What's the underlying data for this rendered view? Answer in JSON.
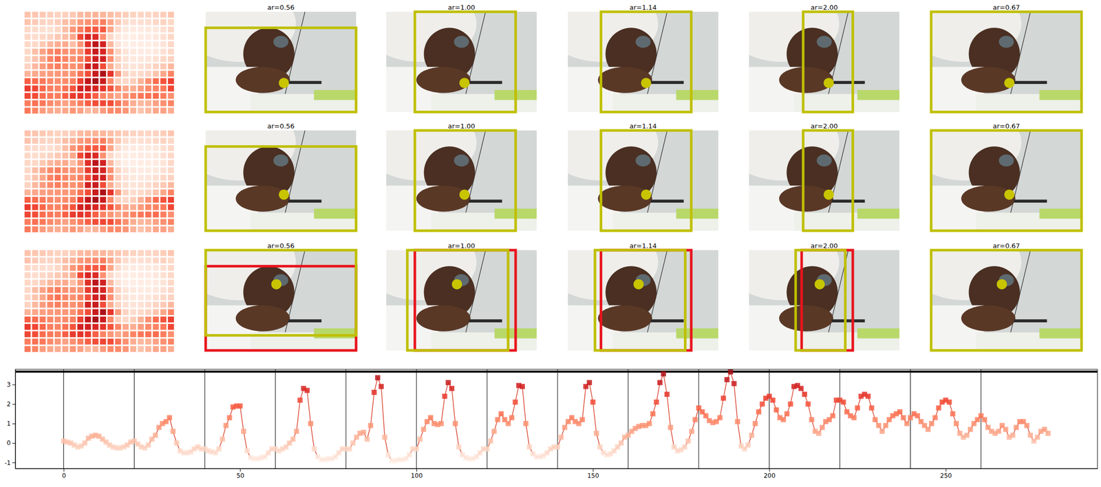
{
  "chart_data": [
    {
      "type": "heatmap",
      "cells": [
        [
          0.1,
          0.05,
          0.0,
          -0.1,
          -0.2,
          -0.15,
          0.0,
          0.25,
          0.35,
          0.4,
          0.35,
          0.2,
          0.05,
          -0.1,
          -0.2,
          -0.25,
          -0.25,
          -0.2,
          -0.1,
          0.05
        ],
        [
          0.1,
          -0.05,
          -0.2,
          -0.25,
          -0.1,
          0.2,
          0.4,
          0.8,
          1.0,
          1.1,
          1.3,
          0.6,
          0.0,
          -0.4,
          -0.5,
          -0.5,
          -0.45,
          -0.3,
          -0.2,
          -0.3
        ],
        [
          -0.3,
          -0.4,
          -0.45,
          -0.5,
          -0.3,
          0.2,
          0.9,
          1.3,
          1.85,
          1.9,
          1.9,
          0.6,
          -0.4,
          -0.75,
          -0.8,
          -0.8,
          -0.75,
          -0.7,
          -0.5,
          -0.3
        ],
        [
          -0.3,
          -0.4,
          -0.3,
          -0.2,
          0.0,
          0.2,
          0.6,
          2.2,
          2.8,
          2.7,
          1.0,
          -0.3,
          -0.7,
          -0.85,
          -0.85,
          -0.8,
          -0.8,
          -0.7,
          -0.5,
          -0.3
        ],
        [
          -0.3,
          -0.3,
          0.0,
          0.3,
          0.5,
          0.55,
          0.2,
          0.9,
          2.6,
          3.35,
          2.9,
          0.3,
          -0.6,
          -0.9,
          -0.9,
          -0.85,
          -0.85,
          -0.8,
          -0.6,
          -0.3
        ],
        [
          -0.3,
          0.2,
          0.7,
          1.1,
          1.3,
          1.0,
          0.95,
          1.0,
          2.4,
          3.1,
          2.8,
          1.0,
          -0.2,
          -0.6,
          -0.75,
          -0.8,
          -0.8,
          -0.7,
          -0.5,
          -0.3
        ],
        [
          -0.3,
          0.1,
          0.6,
          1.2,
          1.5,
          1.2,
          1.0,
          1.3,
          2.1,
          2.95,
          2.9,
          1.0,
          -0.2,
          -0.55,
          -0.7,
          -0.7,
          -0.65,
          -0.5,
          -0.3,
          -0.2
        ],
        [
          -0.2,
          0.3,
          0.8,
          1.1,
          1.3,
          1.1,
          1.0,
          1.2,
          2.9,
          3.1,
          2.1,
          0.5,
          -0.2,
          -0.5,
          -0.6,
          -0.55,
          -0.4,
          -0.2,
          0.0,
          0.3
        ],
        [
          0.4,
          0.6,
          0.75,
          0.85,
          0.9,
          0.9,
          1.0,
          1.5,
          2.1,
          3.1,
          3.55,
          2.5,
          0.8,
          -0.2,
          -0.4,
          -0.35,
          -0.2,
          0.1,
          0.6,
          1.2
        ],
        [
          1.8,
          1.6,
          1.4,
          1.15,
          1.05,
          1.1,
          1.3,
          2.3,
          3.25,
          3.65,
          3.05,
          1.1,
          -0.15,
          -0.3,
          -0.1,
          0.4,
          1.0,
          1.6,
          2.0,
          2.3
        ],
        [
          2.4,
          2.2,
          1.7,
          1.3,
          1.2,
          1.5,
          2.0,
          2.9,
          2.95,
          2.8,
          2.5,
          2.0,
          1.2,
          0.6,
          0.5,
          0.8,
          1.1,
          1.2,
          1.4,
          2.2
        ],
        [
          2.2,
          2.1,
          1.6,
          1.4,
          1.3,
          1.8,
          2.4,
          2.5,
          2.4,
          1.8,
          1.2,
          0.9,
          0.6,
          0.9,
          1.2,
          1.4,
          1.5,
          1.6,
          1.3,
          1.0
        ],
        [
          1.3,
          1.5,
          1.4,
          1.1,
          0.9,
          0.7,
          1.0,
          1.3,
          1.8,
          2.1,
          2.2,
          2.1,
          1.5,
          1.0,
          0.5,
          0.3,
          0.4,
          0.7,
          1.0,
          1.2
        ],
        [
          1.4,
          1.2,
          0.8,
          0.6,
          0.5,
          0.6,
          0.9,
          0.7,
          0.3,
          0.4,
          0.8,
          1.1,
          1.1,
          0.9,
          0.4,
          0.1,
          0.3,
          0.6,
          0.7,
          0.5
        ]
      ]
    },
    {
      "type": "image_grid",
      "rows": [
        [
          {
            "title": "ar=0.56",
            "box": [
              0.0,
              0.16,
              1.0,
              1.0
            ],
            "point": [
              0.52,
              0.71
            ]
          },
          {
            "title": "ar=1.00",
            "box": [
              0.19,
              0.0,
              0.86,
              1.0
            ],
            "point": [
              0.52,
              0.71
            ]
          },
          {
            "title": "ar=1.14",
            "box": [
              0.22,
              0.0,
              0.82,
              1.0
            ],
            "point": [
              0.52,
              0.71
            ]
          },
          {
            "title": "ar=2.00",
            "box": [
              0.36,
              0.0,
              0.69,
              1.0
            ],
            "point": [
              0.53,
              0.71
            ]
          },
          {
            "title": "ar=0.67",
            "box": [
              0.0,
              0.0,
              1.0,
              1.0
            ],
            "point": [
              0.52,
              0.71
            ]
          }
        ],
        [
          {
            "title": "ar=0.56",
            "box": [
              0.0,
              0.16,
              1.0,
              1.0
            ],
            "point": [
              0.52,
              0.64
            ]
          },
          {
            "title": "ar=1.00",
            "box": [
              0.19,
              0.0,
              0.86,
              1.0
            ],
            "point": [
              0.52,
              0.64
            ]
          },
          {
            "title": "ar=1.14",
            "box": [
              0.22,
              0.0,
              0.82,
              1.0
            ],
            "point": [
              0.52,
              0.64
            ]
          },
          {
            "title": "ar=2.00",
            "box": [
              0.36,
              0.0,
              0.69,
              1.0
            ],
            "point": [
              0.53,
              0.64
            ]
          },
          {
            "title": "ar=0.67",
            "box": [
              0.0,
              0.0,
              1.0,
              1.0
            ],
            "point": [
              0.52,
              0.64
            ]
          }
        ],
        [
          {
            "title": "ar=0.56",
            "box": [
              0.0,
              0.0,
              1.0,
              0.85
            ],
            "prev_box": [
              0.0,
              0.16,
              1.0,
              1.0
            ],
            "point": [
              0.47,
              0.34
            ]
          },
          {
            "title": "ar=1.00",
            "box": [
              0.14,
              0.0,
              0.81,
              1.0
            ],
            "prev_box": [
              0.19,
              0.0,
              0.86,
              1.0
            ],
            "point": [
              0.47,
              0.34
            ]
          },
          {
            "title": "ar=1.14",
            "box": [
              0.18,
              0.0,
              0.78,
              1.0
            ],
            "prev_box": [
              0.22,
              0.0,
              0.82,
              1.0
            ],
            "point": [
              0.47,
              0.34
            ]
          },
          {
            "title": "ar=2.00",
            "box": [
              0.31,
              0.0,
              0.64,
              1.0
            ],
            "prev_box": [
              0.35,
              0.0,
              0.69,
              1.0
            ],
            "point": [
              0.47,
              0.34
            ]
          },
          {
            "title": "ar=0.67",
            "box": [
              0.0,
              0.0,
              1.0,
              1.0
            ],
            "point": [
              0.47,
              0.34
            ]
          }
        ]
      ]
    },
    {
      "type": "line",
      "color": "#d9432f",
      "marker": "square",
      "xlim": [
        -13.7,
        293
      ],
      "ylim": [
        -1.31,
        3.78
      ],
      "xticks": [
        0,
        50,
        100,
        150,
        200,
        250
      ],
      "yticks": [
        -1,
        0,
        1,
        2,
        3
      ],
      "vlines": [
        0,
        20,
        40,
        60,
        80,
        100,
        120,
        140,
        160,
        180,
        200,
        220,
        240,
        260
      ],
      "hline": 3.66,
      "x": [
        0,
        1,
        2,
        3,
        4,
        5,
        6,
        7,
        8,
        9,
        10,
        11,
        12,
        13,
        14,
        15,
        16,
        17,
        18,
        19,
        20,
        21,
        22,
        23,
        24,
        25,
        26,
        27,
        28,
        29,
        30,
        31,
        32,
        33,
        34,
        35,
        36,
        37,
        38,
        39,
        40,
        41,
        42,
        43,
        44,
        45,
        46,
        47,
        48,
        49,
        50,
        51,
        52,
        53,
        54,
        55,
        56,
        57,
        58,
        59,
        60,
        61,
        62,
        63,
        64,
        65,
        66,
        67,
        68,
        69,
        70,
        71,
        72,
        73,
        74,
        75,
        76,
        77,
        78,
        79,
        80,
        81,
        82,
        83,
        84,
        85,
        86,
        87,
        88,
        89,
        90,
        91,
        92,
        93,
        94,
        95,
        96,
        97,
        98,
        99,
        100,
        101,
        102,
        103,
        104,
        105,
        106,
        107,
        108,
        109,
        110,
        111,
        112,
        113,
        114,
        115,
        116,
        117,
        118,
        119,
        120,
        121,
        122,
        123,
        124,
        125,
        126,
        127,
        128,
        129,
        130,
        131,
        132,
        133,
        134,
        135,
        136,
        137,
        138,
        139,
        140,
        141,
        142,
        143,
        144,
        145,
        146,
        147,
        148,
        149,
        150,
        151,
        152,
        153,
        154,
        155,
        156,
        157,
        158,
        159,
        160,
        161,
        162,
        163,
        164,
        165,
        166,
        167,
        168,
        169,
        170,
        171,
        172,
        173,
        174,
        175,
        176,
        177,
        178,
        179,
        180,
        181,
        182,
        183,
        184,
        185,
        186,
        187,
        188,
        189,
        190,
        191,
        192,
        193,
        194,
        195,
        196,
        197,
        198,
        199,
        200,
        201,
        202,
        203,
        204,
        205,
        206,
        207,
        208,
        209,
        210,
        211,
        212,
        213,
        214,
        215,
        216,
        217,
        218,
        219,
        220,
        221,
        222,
        223,
        224,
        225,
        226,
        227,
        228,
        229,
        230,
        231,
        232,
        233,
        234,
        235,
        236,
        237,
        238,
        239,
        240,
        241,
        242,
        243,
        244,
        245,
        246,
        247,
        248,
        249,
        250,
        251,
        252,
        253,
        254,
        255,
        256,
        257,
        258,
        259,
        260,
        261,
        262,
        263,
        264,
        265,
        266,
        267,
        268,
        269,
        270,
        271,
        272,
        273,
        274,
        275,
        276,
        277,
        278,
        279
      ],
      "values": [
        0.1,
        0.05,
        0.0,
        -0.1,
        -0.2,
        -0.15,
        0.0,
        0.25,
        0.35,
        0.4,
        0.35,
        0.2,
        0.05,
        -0.1,
        -0.2,
        -0.25,
        -0.25,
        -0.2,
        -0.1,
        0.05,
        0.1,
        -0.05,
        -0.2,
        -0.25,
        -0.1,
        0.2,
        0.4,
        0.8,
        1.0,
        1.1,
        1.3,
        0.6,
        0.0,
        -0.4,
        -0.5,
        -0.5,
        -0.45,
        -0.3,
        -0.2,
        -0.3,
        -0.3,
        -0.4,
        -0.45,
        -0.5,
        -0.3,
        0.2,
        0.9,
        1.3,
        1.85,
        1.9,
        1.9,
        0.6,
        -0.4,
        -0.75,
        -0.8,
        -0.8,
        -0.75,
        -0.7,
        -0.5,
        -0.3,
        -0.3,
        -0.4,
        -0.3,
        -0.2,
        0.0,
        0.2,
        0.6,
        2.2,
        2.8,
        2.7,
        1.0,
        -0.3,
        -0.7,
        -0.85,
        -0.85,
        -0.8,
        -0.8,
        -0.7,
        -0.5,
        -0.3,
        -0.3,
        -0.3,
        0.0,
        0.3,
        0.5,
        0.55,
        0.2,
        0.9,
        2.6,
        3.35,
        2.9,
        0.3,
        -0.6,
        -0.9,
        -0.9,
        -0.85,
        -0.85,
        -0.8,
        -0.6,
        -0.3,
        -0.3,
        0.2,
        0.7,
        1.1,
        1.3,
        1.0,
        0.95,
        1.0,
        2.4,
        3.1,
        2.8,
        1.0,
        -0.2,
        -0.6,
        -0.75,
        -0.8,
        -0.8,
        -0.7,
        -0.5,
        -0.3,
        -0.3,
        0.1,
        0.6,
        1.2,
        1.5,
        1.2,
        1.0,
        1.3,
        2.1,
        2.95,
        2.9,
        1.0,
        -0.2,
        -0.55,
        -0.7,
        -0.7,
        -0.65,
        -0.5,
        -0.3,
        -0.2,
        -0.2,
        0.3,
        0.8,
        1.1,
        1.3,
        1.1,
        1.0,
        1.2,
        2.9,
        3.1,
        2.1,
        0.5,
        -0.2,
        -0.5,
        -0.6,
        -0.55,
        -0.4,
        -0.2,
        0.0,
        0.3,
        0.4,
        0.6,
        0.75,
        0.85,
        0.9,
        0.9,
        1.0,
        1.5,
        2.1,
        3.1,
        3.55,
        2.5,
        0.8,
        -0.2,
        -0.4,
        -0.35,
        -0.2,
        0.1,
        0.6,
        1.2,
        1.8,
        1.6,
        1.4,
        1.15,
        1.05,
        1.1,
        1.3,
        2.3,
        3.25,
        3.65,
        3.05,
        1.1,
        -0.15,
        -0.3,
        -0.1,
        0.4,
        1.0,
        1.6,
        2.0,
        2.3,
        2.4,
        2.2,
        1.7,
        1.3,
        1.2,
        1.5,
        2.0,
        2.9,
        2.95,
        2.8,
        2.5,
        2.0,
        1.2,
        0.6,
        0.5,
        0.8,
        1.1,
        1.2,
        1.4,
        2.2,
        2.2,
        2.1,
        1.6,
        1.4,
        1.3,
        1.8,
        2.4,
        2.5,
        2.4,
        1.8,
        1.2,
        0.9,
        0.6,
        0.9,
        1.2,
        1.4,
        1.5,
        1.6,
        1.3,
        1.0,
        1.3,
        1.5,
        1.4,
        1.1,
        0.9,
        0.7,
        1.0,
        1.3,
        1.8,
        2.1,
        2.2,
        2.1,
        1.5,
        1.0,
        0.5,
        0.3,
        0.4,
        0.7,
        1.0,
        1.2,
        1.4,
        1.2,
        0.8,
        0.6,
        0.5,
        0.6,
        0.9,
        0.7,
        0.3,
        0.4,
        0.8,
        1.1,
        1.1,
        0.9,
        0.4,
        0.1,
        0.3,
        0.6,
        0.7,
        0.5
      ]
    }
  ]
}
